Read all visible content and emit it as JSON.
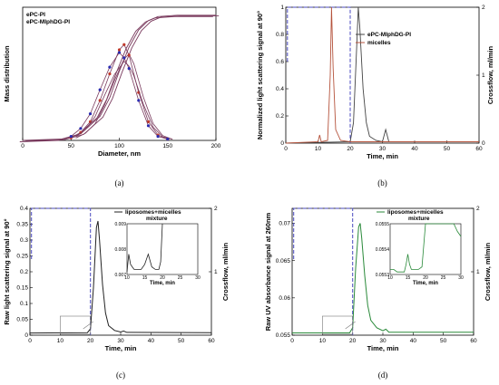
{
  "chart_data": [
    {
      "panel": "(a)",
      "type": "line",
      "xlabel": "Diameter, nm",
      "ylabel": "Mass distribution",
      "xlim": [
        0,
        200
      ],
      "xticks": [
        "0",
        "50",
        "100",
        "150",
        "200"
      ],
      "legend": [
        "ePC-PI",
        "ePC-MIphDG-PI"
      ],
      "colors": {
        "ePC-PI": "#c0392b",
        "ePC-MIphDG-PI": "#2b2bb0",
        "fit": "#7a3b5e"
      },
      "cumulative": {
        "x": [
          0,
          40,
          60,
          80,
          90,
          100,
          110,
          120,
          130,
          140,
          160,
          200
        ],
        "y": [
          0,
          0.01,
          0.05,
          0.18,
          0.32,
          0.52,
          0.7,
          0.83,
          0.9,
          0.93,
          0.94,
          0.94
        ]
      },
      "series": [
        {
          "name": "ePC-PI",
          "x": [
            50,
            60,
            70,
            80,
            90,
            100,
            105,
            110,
            120,
            130,
            140,
            150
          ],
          "y": [
            0.02,
            0.06,
            0.14,
            0.3,
            0.5,
            0.68,
            0.72,
            0.64,
            0.36,
            0.14,
            0.04,
            0.01
          ]
        },
        {
          "name": "ePC-MIphDG-PI",
          "x": [
            50,
            60,
            70,
            80,
            90,
            100,
            105,
            110,
            120,
            130,
            140,
            150
          ],
          "y": [
            0.03,
            0.09,
            0.2,
            0.38,
            0.55,
            0.66,
            0.62,
            0.54,
            0.3,
            0.11,
            0.03,
            0.01
          ]
        }
      ]
    },
    {
      "panel": "(b)",
      "type": "line",
      "xlabel": "Time, min",
      "ylabel": "Normalized light scattering signal at 90°",
      "y2label": "Crossflow, ml/min",
      "xlim": [
        0,
        60
      ],
      "ylim": [
        0,
        1
      ],
      "y2lim": [
        0,
        2
      ],
      "xticks": [
        "0",
        "10",
        "20",
        "30",
        "40",
        "50",
        "60"
      ],
      "yticks": [
        "0",
        "0.2",
        "0.4",
        "0.6",
        "0.8",
        "1"
      ],
      "y2ticks": [
        "0",
        "1",
        "2"
      ],
      "legend": [
        "ePC-MIphDG-PI",
        "micelles"
      ],
      "series": [
        {
          "name": "ePC-MIphDG-PI",
          "color": "#444444",
          "x": [
            0,
            20,
            21,
            22,
            22.5,
            23,
            24,
            25,
            26,
            28,
            30,
            31,
            32,
            35,
            60
          ],
          "y": [
            0,
            0.01,
            0.15,
            0.7,
            1.0,
            0.85,
            0.4,
            0.15,
            0.05,
            0.02,
            0.01,
            0.1,
            0.01,
            0.01,
            0.01
          ]
        },
        {
          "name": "micelles",
          "color": "#b5533c",
          "x": [
            0,
            10,
            10.5,
            11,
            13,
            13.8,
            14.2,
            14.7,
            15.5,
            17,
            20,
            60
          ],
          "y": [
            0,
            0.01,
            0.06,
            0.01,
            0.02,
            0.5,
            1.0,
            0.55,
            0.1,
            0.02,
            0.01,
            0.01
          ]
        }
      ],
      "crossflow": {
        "x": [
          0.5,
          0.5,
          20,
          20
        ],
        "y": [
          1.2,
          2,
          2,
          0
        ]
      }
    },
    {
      "panel": "(c)",
      "type": "line",
      "xlabel": "Time, min",
      "ylabel": "Raw light scattering signal at 90°",
      "y2label": "Crossflow, ml/min",
      "xlim": [
        0,
        60
      ],
      "ylim": [
        0,
        0.4
      ],
      "y2lim": [
        0,
        2
      ],
      "xticks": [
        "0",
        "10",
        "20",
        "30",
        "40",
        "50",
        "60"
      ],
      "yticks": [
        "0",
        "0.05",
        "0.1",
        "0.15",
        "0.2",
        "0.25",
        "0.3",
        "0.35",
        "0.4"
      ],
      "y2ticks": [
        "1",
        "2"
      ],
      "legend": [
        "liposomes+micelles",
        "mixture"
      ],
      "series": [
        {
          "name": "liposomes+micelles",
          "color": "#222222",
          "x": [
            0,
            19,
            20,
            21,
            22,
            22.5,
            23,
            24,
            25,
            26,
            28,
            30,
            31,
            32,
            60
          ],
          "y": [
            0.007,
            0.008,
            0.02,
            0.15,
            0.34,
            0.36,
            0.3,
            0.16,
            0.07,
            0.03,
            0.015,
            0.01,
            0.013,
            0.009,
            0.008
          ]
        }
      ],
      "crossflow": {
        "x": [
          0.5,
          0.5,
          20,
          20
        ],
        "y": [
          1.2,
          2,
          2,
          0
        ]
      },
      "inset": {
        "xlim": [
          10,
          30
        ],
        "ylim": [
          0.007,
          0.009
        ],
        "xlabel": "Time, min",
        "xticks": [
          "10",
          "15",
          "20",
          "25",
          "30"
        ],
        "yticks": [
          "0.007",
          "0.008",
          "0.009"
        ],
        "x": [
          10,
          10.5,
          11,
          11.5,
          12,
          13,
          14,
          15,
          15.5,
          16,
          17,
          18,
          19,
          19.5,
          20
        ],
        "y": [
          0.0071,
          0.0078,
          0.0074,
          0.0073,
          0.0072,
          0.0072,
          0.0072,
          0.0074,
          0.0076,
          0.0078,
          0.0073,
          0.0072,
          0.0072,
          0.0075,
          0.009
        ]
      }
    },
    {
      "panel": "(d)",
      "type": "line",
      "xlabel": "Time, min",
      "ylabel": "Raw UV absorbance signal at 260nm",
      "y2label": "Crossflow, ml/min",
      "xlim": [
        0,
        60
      ],
      "ylim": [
        0.055,
        0.072
      ],
      "y2lim": [
        0,
        2
      ],
      "xticks": [
        "0",
        "10",
        "20",
        "30",
        "40",
        "50",
        "60"
      ],
      "yticks": [
        "0.055",
        "0.06",
        "0.065",
        "0.07"
      ],
      "y2ticks": [
        "1",
        "2"
      ],
      "legend": [
        "liposomes+micelles",
        "mixture"
      ],
      "series": [
        {
          "name": "liposomes+micelles",
          "color": "#2a8a3a",
          "x": [
            0,
            19,
            20,
            21,
            22,
            22.5,
            23,
            24,
            25,
            26,
            28,
            30,
            31,
            32,
            40,
            50,
            60
          ],
          "y": [
            0.0553,
            0.0553,
            0.056,
            0.064,
            0.0695,
            0.07,
            0.068,
            0.063,
            0.059,
            0.057,
            0.056,
            0.0556,
            0.0558,
            0.0554,
            0.0554,
            0.0554,
            0.0554
          ]
        }
      ],
      "crossflow": {
        "x": [
          0.5,
          0.5,
          20,
          20
        ],
        "y": [
          1.2,
          2,
          2,
          0
        ]
      },
      "inset": {
        "xlim": [
          10,
          30
        ],
        "ylim": [
          0.0553,
          0.0555
        ],
        "xlabel": "Time, min",
        "xticks": [
          "10",
          "15",
          "20",
          "25",
          "30"
        ],
        "yticks": [
          "0.0553",
          "0.0554",
          "0.0555"
        ],
        "x": [
          10,
          11,
          12,
          13,
          14,
          14.5,
          15,
          15.5,
          16,
          17,
          18,
          19,
          20,
          21,
          22,
          28,
          29,
          30
        ],
        "y": [
          0.05532,
          0.05532,
          0.05531,
          0.05531,
          0.05531,
          0.05534,
          0.05538,
          0.05534,
          0.05532,
          0.05532,
          0.05532,
          0.05533,
          0.0555,
          0.0555,
          0.0555,
          0.0555,
          0.05547,
          0.05545
        ]
      }
    }
  ]
}
